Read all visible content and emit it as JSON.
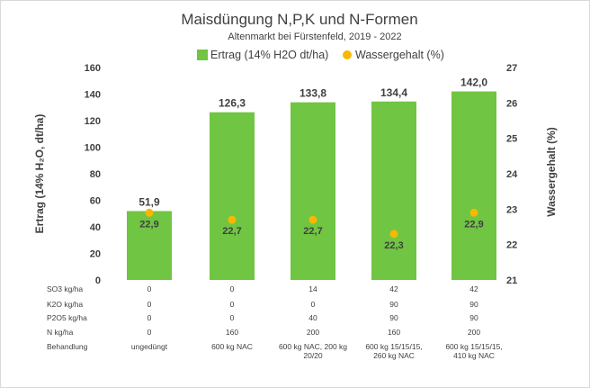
{
  "chart_data": {
    "type": "bar",
    "title": "Maisdüngung N,P,K und N-Formen",
    "subtitle": "Altenmarkt bei Fürstenfeld, 2019 - 2022",
    "ylabel_left": "Ertrag (14% H₂O, dt/ha)",
    "ylabel_right": "Wassergehalt (%)",
    "ylim_left": [
      0,
      160
    ],
    "ylim_right": [
      21,
      27
    ],
    "yticks_left": [
      "0",
      "20",
      "40",
      "60",
      "80",
      "100",
      "120",
      "140",
      "160"
    ],
    "yticks_right": [
      "21",
      "22",
      "23",
      "24",
      "25",
      "26",
      "27"
    ],
    "legend": {
      "placement": "top-center",
      "ertrag": "Ertrag (14% H2O dt/ha)",
      "wasser": "Wassergehalt (%)"
    },
    "colors": {
      "bar": "#70c543",
      "dot": "#f6b800"
    },
    "series": [
      {
        "name": "Ertrag (14% H2O dt/ha)",
        "axis": "left",
        "values": [
          51.9,
          126.3,
          133.8,
          134.4,
          142.0
        ],
        "labels": [
          "51,9",
          "126,3",
          "133,8",
          "134,4",
          "142,0"
        ]
      },
      {
        "name": "Wassergehalt (%)",
        "axis": "right",
        "values": [
          22.9,
          22.7,
          22.7,
          22.3,
          22.9
        ],
        "labels": [
          "22,9",
          "22,7",
          "22,7",
          "22,3",
          "22,9"
        ]
      }
    ],
    "table": {
      "rows": [
        {
          "label": "SO3 kg/ha",
          "cells": [
            [
              "0"
            ],
            [
              "0"
            ],
            [
              "14"
            ],
            [
              "42"
            ],
            [
              "42"
            ]
          ]
        },
        {
          "label": "K2O kg/ha",
          "cells": [
            [
              "0"
            ],
            [
              "0"
            ],
            [
              "0"
            ],
            [
              "90"
            ],
            [
              "90"
            ]
          ]
        },
        {
          "label": "P2O5 kg/ha",
          "cells": [
            [
              "0"
            ],
            [
              "0"
            ],
            [
              "40"
            ],
            [
              "90"
            ],
            [
              "90"
            ]
          ]
        },
        {
          "label": "N kg/ha",
          "cells": [
            [
              "0"
            ],
            [
              "160"
            ],
            [
              "200"
            ],
            [
              "160"
            ],
            [
              "200"
            ]
          ]
        },
        {
          "label": "Behandlung",
          "cells": [
            [
              "ungedüngt"
            ],
            [
              "600 kg NAC"
            ],
            [
              "600 kg NAC, 200 kg",
              "20/20"
            ],
            [
              "600 kg 15/15/15,",
              "260 kg NAC"
            ],
            [
              "600 kg 15/15/15,",
              "410 kg NAC"
            ]
          ]
        }
      ]
    }
  }
}
